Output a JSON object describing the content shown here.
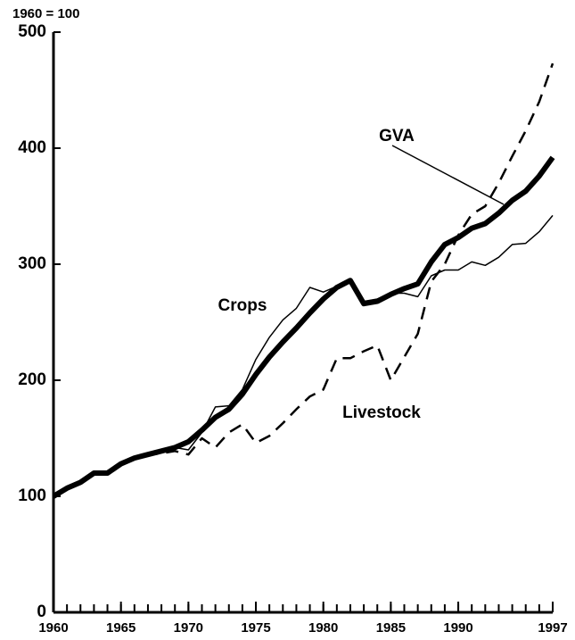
{
  "chart_data": {
    "type": "line",
    "y_label": "1960 = 100",
    "x": [
      1960,
      1961,
      1962,
      1963,
      1964,
      1965,
      1966,
      1967,
      1968,
      1969,
      1970,
      1971,
      1972,
      1973,
      1974,
      1975,
      1976,
      1977,
      1978,
      1979,
      1980,
      1981,
      1982,
      1983,
      1984,
      1985,
      1986,
      1987,
      1988,
      1989,
      1990,
      1991,
      1992,
      1993,
      1994,
      1995,
      1996,
      1997
    ],
    "series": [
      {
        "name": "GVA",
        "color": "#000000",
        "width": 6,
        "dash": false,
        "values": [
          100,
          107,
          112,
          120,
          120,
          128,
          133,
          136,
          139,
          142,
          147,
          157,
          168,
          175,
          188,
          205,
          220,
          233,
          245,
          258,
          270,
          280,
          286,
          266,
          268,
          274,
          279,
          283,
          302,
          317,
          323,
          331,
          335,
          344,
          355,
          363,
          376,
          392
        ]
      },
      {
        "name": "Crops",
        "color": "#000000",
        "width": 1.5,
        "dash": false,
        "values": [
          100,
          106,
          111,
          119,
          120,
          128,
          133,
          136,
          138,
          142,
          140,
          155,
          177,
          178,
          192,
          218,
          237,
          252,
          262,
          280,
          276,
          281,
          285,
          268,
          270,
          275,
          275,
          272,
          290,
          295,
          295,
          302,
          299,
          306,
          317,
          318,
          328,
          342
        ]
      },
      {
        "name": "Livestock",
        "color": "#000000",
        "width": 2.5,
        "dash": true,
        "values": [
          100,
          106,
          111,
          119,
          120,
          128,
          133,
          136,
          137,
          139,
          136,
          150,
          142,
          155,
          162,
          146,
          152,
          163,
          175,
          186,
          192,
          219,
          219,
          225,
          230,
          200,
          220,
          240,
          285,
          300,
          325,
          343,
          350,
          370,
          393,
          415,
          440,
          473
        ]
      }
    ],
    "xlim": [
      1960,
      1997
    ],
    "xticks": [
      1960,
      1965,
      1970,
      1975,
      1980,
      1985,
      1990,
      1997
    ],
    "ylim": [
      0,
      500
    ],
    "yticks": [
      0,
      100,
      200,
      300,
      400,
      500
    ],
    "grid": false
  }
}
